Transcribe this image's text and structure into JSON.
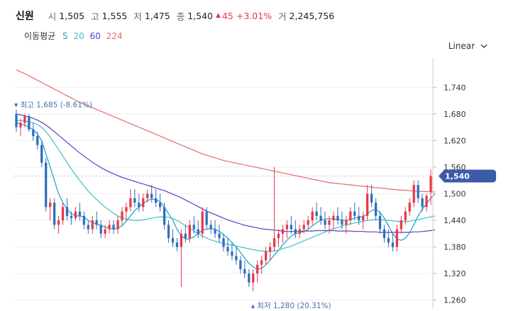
{
  "header": {
    "name": "신원",
    "open_label": "시",
    "open": "1,505",
    "high_label": "고",
    "high": "1,555",
    "low_label": "저",
    "low": "1,475",
    "close_label": "종",
    "close": "1,540",
    "change": "45",
    "change_pct": "+3.01%",
    "volume_label": "거",
    "volume": "2,245,756"
  },
  "ma_legend": {
    "title": "이동평균",
    "periods": [
      {
        "label": "5",
        "color": "#1aa0c8"
      },
      {
        "label": "20",
        "color": "#3cc2c8"
      },
      {
        "label": "60",
        "color": "#5b3fc4"
      },
      {
        "label": "224",
        "color": "#e86a6a"
      }
    ]
  },
  "scale_toggle": {
    "label": "Linear"
  },
  "colors": {
    "up": "#e8384a",
    "down": "#2f6fbd",
    "badge": "#3b5aa8"
  },
  "chart_data": {
    "type": "candlestick",
    "ylim": [
      1250,
      1790
    ],
    "yticks": [
      1260,
      1320,
      1380,
      1440,
      1500,
      1560,
      1620,
      1680,
      1740
    ],
    "ytick_labels": [
      "1,260",
      "1,320",
      "1,380",
      "1,440",
      "1,500",
      "1,560",
      "1,620",
      "1,680",
      "1,740"
    ],
    "current_price_label": "1,540",
    "current_price": 1540,
    "max_annotation": {
      "text": "최고 1,685 (-8.61%)",
      "value": 1685
    },
    "min_annotation": {
      "text": "최저 1,280 (20.31%)",
      "value": 1280
    },
    "candles": [
      [
        1680,
        1690,
        1640,
        1650
      ],
      [
        1650,
        1670,
        1630,
        1660
      ],
      [
        1660,
        1680,
        1650,
        1675
      ],
      [
        1675,
        1680,
        1640,
        1645
      ],
      [
        1645,
        1660,
        1620,
        1630
      ],
      [
        1630,
        1640,
        1600,
        1610
      ],
      [
        1610,
        1620,
        1560,
        1570
      ],
      [
        1570,
        1580,
        1460,
        1470
      ],
      [
        1470,
        1490,
        1440,
        1480
      ],
      [
        1480,
        1490,
        1420,
        1430
      ],
      [
        1430,
        1450,
        1410,
        1440
      ],
      [
        1440,
        1480,
        1430,
        1470
      ],
      [
        1470,
        1490,
        1440,
        1450
      ],
      [
        1450,
        1460,
        1430,
        1445
      ],
      [
        1445,
        1470,
        1440,
        1460
      ],
      [
        1460,
        1480,
        1440,
        1450
      ],
      [
        1450,
        1460,
        1420,
        1430
      ],
      [
        1430,
        1440,
        1410,
        1420
      ],
      [
        1420,
        1450,
        1410,
        1440
      ],
      [
        1440,
        1460,
        1420,
        1430
      ],
      [
        1430,
        1440,
        1400,
        1410
      ],
      [
        1410,
        1430,
        1400,
        1420
      ],
      [
        1420,
        1440,
        1410,
        1430
      ],
      [
        1430,
        1440,
        1410,
        1420
      ],
      [
        1420,
        1450,
        1410,
        1440
      ],
      [
        1440,
        1470,
        1430,
        1460
      ],
      [
        1460,
        1480,
        1440,
        1470
      ],
      [
        1470,
        1510,
        1460,
        1490
      ],
      [
        1490,
        1510,
        1470,
        1480
      ],
      [
        1480,
        1500,
        1460,
        1470
      ],
      [
        1470,
        1500,
        1460,
        1490
      ],
      [
        1490,
        1510,
        1480,
        1500
      ],
      [
        1500,
        1520,
        1480,
        1490
      ],
      [
        1490,
        1510,
        1470,
        1480
      ],
      [
        1480,
        1500,
        1460,
        1470
      ],
      [
        1470,
        1480,
        1420,
        1430
      ],
      [
        1430,
        1440,
        1390,
        1400
      ],
      [
        1400,
        1420,
        1380,
        1390
      ],
      [
        1390,
        1400,
        1370,
        1380
      ],
      [
        1380,
        1420,
        1290,
        1410
      ],
      [
        1410,
        1430,
        1390,
        1400
      ],
      [
        1400,
        1440,
        1390,
        1430
      ],
      [
        1430,
        1450,
        1410,
        1420
      ],
      [
        1420,
        1440,
        1400,
        1410
      ],
      [
        1410,
        1470,
        1400,
        1460
      ],
      [
        1460,
        1470,
        1420,
        1430
      ],
      [
        1430,
        1440,
        1410,
        1420
      ],
      [
        1420,
        1440,
        1400,
        1410
      ],
      [
        1410,
        1430,
        1390,
        1400
      ],
      [
        1400,
        1410,
        1370,
        1380
      ],
      [
        1380,
        1400,
        1360,
        1370
      ],
      [
        1370,
        1390,
        1350,
        1360
      ],
      [
        1360,
        1380,
        1340,
        1350
      ],
      [
        1350,
        1360,
        1320,
        1330
      ],
      [
        1330,
        1350,
        1310,
        1320
      ],
      [
        1320,
        1330,
        1290,
        1300
      ],
      [
        1300,
        1330,
        1280,
        1320
      ],
      [
        1320,
        1350,
        1300,
        1340
      ],
      [
        1340,
        1360,
        1320,
        1350
      ],
      [
        1350,
        1380,
        1340,
        1370
      ],
      [
        1370,
        1390,
        1350,
        1380
      ],
      [
        1380,
        1560,
        1370,
        1400
      ],
      [
        1400,
        1420,
        1380,
        1410
      ],
      [
        1410,
        1430,
        1390,
        1420
      ],
      [
        1420,
        1440,
        1400,
        1430
      ],
      [
        1430,
        1450,
        1410,
        1420
      ],
      [
        1420,
        1440,
        1400,
        1410
      ],
      [
        1410,
        1430,
        1400,
        1420
      ],
      [
        1420,
        1440,
        1410,
        1430
      ],
      [
        1430,
        1450,
        1420,
        1440
      ],
      [
        1440,
        1470,
        1430,
        1460
      ],
      [
        1460,
        1480,
        1440,
        1450
      ],
      [
        1450,
        1470,
        1430,
        1440
      ],
      [
        1440,
        1460,
        1420,
        1430
      ],
      [
        1430,
        1450,
        1410,
        1440
      ],
      [
        1440,
        1460,
        1420,
        1450
      ],
      [
        1450,
        1470,
        1430,
        1440
      ],
      [
        1440,
        1460,
        1420,
        1430
      ],
      [
        1430,
        1450,
        1410,
        1440
      ],
      [
        1440,
        1470,
        1430,
        1460
      ],
      [
        1460,
        1480,
        1440,
        1450
      ],
      [
        1450,
        1470,
        1430,
        1440
      ],
      [
        1440,
        1460,
        1420,
        1450
      ],
      [
        1450,
        1520,
        1440,
        1500
      ],
      [
        1500,
        1520,
        1470,
        1480
      ],
      [
        1480,
        1490,
        1440,
        1450
      ],
      [
        1450,
        1460,
        1410,
        1420
      ],
      [
        1420,
        1430,
        1390,
        1400
      ],
      [
        1400,
        1420,
        1380,
        1390
      ],
      [
        1390,
        1410,
        1370,
        1380
      ],
      [
        1380,
        1430,
        1370,
        1420
      ],
      [
        1420,
        1450,
        1410,
        1440
      ],
      [
        1440,
        1470,
        1430,
        1460
      ],
      [
        1460,
        1490,
        1450,
        1480
      ],
      [
        1480,
        1530,
        1470,
        1520
      ],
      [
        1520,
        1530,
        1480,
        1490
      ],
      [
        1490,
        1500,
        1460,
        1470
      ],
      [
        1470,
        1500,
        1460,
        1495
      ],
      [
        1505,
        1555,
        1475,
        1540
      ]
    ],
    "ma_lines": [
      {
        "period": "5",
        "values": [
          1660,
          1658,
          1655,
          1650,
          1645,
          1635,
          1620,
          1590,
          1560,
          1530,
          1500,
          1480,
          1465,
          1455,
          1450,
          1450,
          1448,
          1440,
          1435,
          1432,
          1428,
          1425,
          1422,
          1420,
          1422,
          1428,
          1438,
          1450,
          1462,
          1470,
          1478,
          1485,
          1488,
          1487,
          1482,
          1470,
          1455,
          1440,
          1420,
          1405,
          1398,
          1398,
          1403,
          1410,
          1418,
          1420,
          1422,
          1420,
          1415,
          1408,
          1400,
          1390,
          1380,
          1368,
          1355,
          1343,
          1335,
          1330,
          1332,
          1340,
          1350,
          1362,
          1372,
          1385,
          1395,
          1405,
          1410,
          1412,
          1415,
          1420,
          1428,
          1435,
          1440,
          1443,
          1444,
          1443,
          1442,
          1441,
          1440,
          1442,
          1445,
          1447,
          1449,
          1455,
          1462,
          1465,
          1458,
          1445,
          1428,
          1410,
          1398,
          1395,
          1400,
          1412,
          1430,
          1450,
          1465,
          1478,
          1490,
          1500
        ]
      },
      {
        "period": "20",
        "values": [
          1665,
          1665,
          1664,
          1662,
          1660,
          1656,
          1650,
          1640,
          1628,
          1614,
          1600,
          1585,
          1570,
          1556,
          1543,
          1530,
          1518,
          1506,
          1496,
          1487,
          1478,
          1470,
          1463,
          1456,
          1450,
          1446,
          1443,
          1441,
          1440,
          1440,
          1441,
          1443,
          1445,
          1447,
          1448,
          1448,
          1447,
          1444,
          1440,
          1434,
          1428,
          1422,
          1416,
          1410,
          1405,
          1400,
          1396,
          1393,
          1390,
          1388,
          1386,
          1384,
          1382,
          1380,
          1378,
          1376,
          1374,
          1372,
          1371,
          1370,
          1370,
          1371,
          1373,
          1376,
          1379,
          1382,
          1386,
          1390,
          1394,
          1398,
          1402,
          1406,
          1410,
          1414,
          1418,
          1421,
          1424,
          1427,
          1430,
          1432,
          1434,
          1436,
          1438,
          1440,
          1441,
          1442,
          1442,
          1441,
          1440,
          1439,
          1438,
          1437,
          1437,
          1438,
          1440,
          1442,
          1444,
          1446,
          1448,
          1450
        ]
      },
      {
        "period": "60",
        "values": [
          1680,
          1678,
          1676,
          1673,
          1670,
          1666,
          1661,
          1655,
          1648,
          1640,
          1632,
          1624,
          1616,
          1608,
          1600,
          1592,
          1585,
          1578,
          1571,
          1565,
          1559,
          1554,
          1549,
          1545,
          1541,
          1537,
          1534,
          1531,
          1528,
          1525,
          1522,
          1519,
          1516,
          1513,
          1510,
          1507,
          1503,
          1499,
          1495,
          1491,
          1486,
          1481,
          1476,
          1471,
          1466,
          1461,
          1457,
          1453,
          1449,
          1445,
          1441,
          1438,
          1435,
          1432,
          1429,
          1427,
          1425,
          1423,
          1421,
          1420,
          1419,
          1418,
          1417,
          1416,
          1415,
          1415,
          1415,
          1415,
          1416,
          1416,
          1416,
          1417,
          1417,
          1417,
          1417,
          1417,
          1416,
          1416,
          1416,
          1416,
          1415,
          1415,
          1415,
          1414,
          1414,
          1414,
          1413,
          1413,
          1413,
          1413,
          1413,
          1413,
          1413,
          1413,
          1414,
          1414,
          1415,
          1416,
          1417,
          1419
        ]
      },
      {
        "period": "224",
        "values": [
          1780,
          1775,
          1771,
          1766,
          1761,
          1756,
          1751,
          1746,
          1741,
          1736,
          1731,
          1726,
          1721,
          1716,
          1711,
          1706,
          1702,
          1698,
          1694,
          1690,
          1686,
          1682,
          1678,
          1674,
          1670,
          1666,
          1662,
          1658,
          1654,
          1650,
          1646,
          1642,
          1638,
          1634,
          1630,
          1626,
          1622,
          1618,
          1614,
          1610,
          1606,
          1602,
          1598,
          1594,
          1590,
          1587,
          1584,
          1581,
          1578,
          1575,
          1573,
          1571,
          1569,
          1567,
          1565,
          1563,
          1561,
          1559,
          1557,
          1555,
          1553,
          1551,
          1549,
          1547,
          1545,
          1543,
          1541,
          1539,
          1537,
          1535,
          1533,
          1531,
          1529,
          1527,
          1525,
          1524,
          1523,
          1522,
          1521,
          1520,
          1519,
          1518,
          1517,
          1516,
          1515,
          1514,
          1513,
          1512,
          1511,
          1510,
          1509,
          1508,
          1508,
          1507,
          1506,
          1506,
          1505,
          1505,
          1504,
          1504
        ]
      }
    ]
  }
}
